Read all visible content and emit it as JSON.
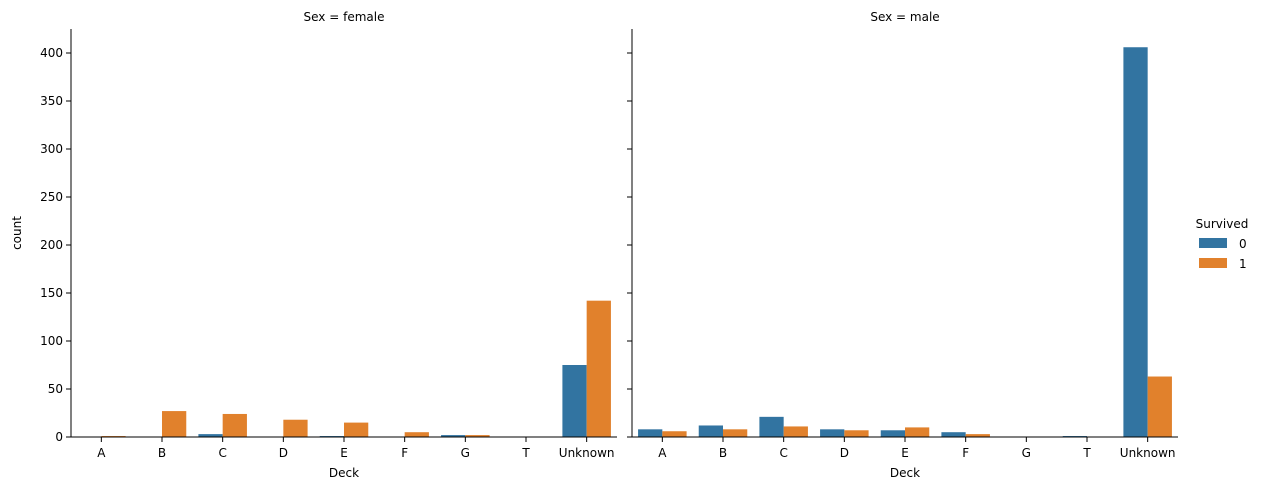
{
  "chart_data": {
    "type": "bar",
    "layout": "facet-columns",
    "facet_variable": "Sex",
    "categories": [
      "A",
      "B",
      "C",
      "D",
      "E",
      "F",
      "G",
      "T",
      "Unknown"
    ],
    "xlabel": "Deck",
    "ylabel": "count",
    "ylim": [
      0,
      425
    ],
    "yticks": [
      0,
      50,
      100,
      150,
      200,
      250,
      300,
      350,
      400
    ],
    "shared_y": true,
    "legend": {
      "title": "Survived",
      "placement": "right",
      "entries": [
        {
          "label": "0",
          "color": "#3274a1"
        },
        {
          "label": "1",
          "color": "#e1812c"
        }
      ]
    },
    "panels": [
      {
        "title": "Sex = female",
        "series": [
          {
            "name": "0",
            "color": "#3274a1",
            "values": [
              0,
              0,
              3,
              0,
              1,
              0,
              2,
              0,
              75
            ]
          },
          {
            "name": "1",
            "color": "#e1812c",
            "values": [
              1,
              27,
              24,
              18,
              15,
              5,
              2,
              0,
              142
            ]
          }
        ]
      },
      {
        "title": "Sex = male",
        "series": [
          {
            "name": "0",
            "color": "#3274a1",
            "values": [
              8,
              12,
              21,
              8,
              7,
              5,
              0,
              1,
              406
            ]
          },
          {
            "name": "1",
            "color": "#e1812c",
            "values": [
              6,
              8,
              11,
              7,
              10,
              3,
              0,
              0,
              63
            ]
          }
        ]
      }
    ]
  }
}
